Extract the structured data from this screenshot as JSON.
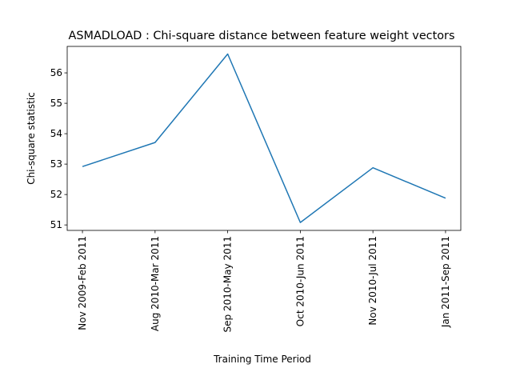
{
  "chart_data": {
    "type": "line",
    "title": "ASMADLOAD : Chi-square distance between feature weight vectors",
    "x_label": "Training Time Period",
    "y_label": "Chi-square statistic",
    "categories": [
      "Nov 2009-Feb 2011",
      "Aug 2010-Mar 2011",
      "Sep 2010-May 2011",
      "Oct 2010-Jun 2011",
      "Nov 2010-Jul 2011",
      "Jan 2011-Sep 2011"
    ],
    "values": [
      52.92,
      53.71,
      56.62,
      51.08,
      52.88,
      51.88
    ],
    "color": "#1f77b4",
    "ylim": [
      50.82,
      56.87
    ],
    "yticks": [
      51,
      52,
      53,
      54,
      55,
      56
    ],
    "grid": false
  }
}
